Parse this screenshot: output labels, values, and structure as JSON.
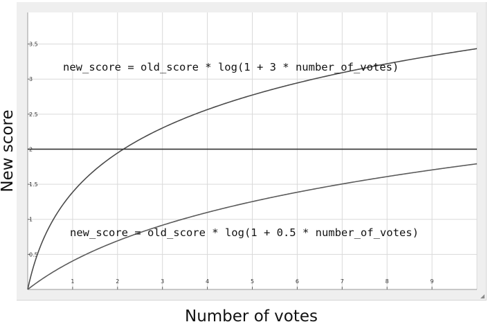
{
  "chart_data": {
    "type": "line",
    "title": "",
    "xlabel": "Number of votes",
    "ylabel": "New score",
    "xlim": [
      0,
      10
    ],
    "ylim": [
      0,
      3.95
    ],
    "x_ticks": [
      "1",
      "2",
      "3",
      "4",
      "5",
      "6",
      "7",
      "8",
      "9"
    ],
    "y_ticks": [
      "0.5",
      "1",
      "1.5",
      "2",
      "2.5",
      "3",
      "3.5"
    ],
    "grid": true,
    "series": [
      {
        "formula": "log(1 + 3 * x)",
        "x": [
          0,
          0.25,
          0.5,
          1,
          1.5,
          2,
          3,
          4,
          5,
          6,
          7,
          8,
          9,
          10
        ],
        "y": [
          0,
          0.56,
          0.92,
          1.39,
          1.7,
          1.95,
          2.3,
          2.56,
          2.77,
          2.94,
          3.09,
          3.22,
          3.33,
          3.43
        ],
        "color": "#4a4a4a"
      },
      {
        "formula": "2",
        "x": [
          0,
          10
        ],
        "y": [
          2,
          2
        ],
        "color": "#333333"
      },
      {
        "formula": "log(1 + 0.5 * x)",
        "x": [
          0,
          0.5,
          1,
          2,
          3,
          4,
          5,
          6,
          7,
          8,
          9,
          10
        ],
        "y": [
          0,
          0.22,
          0.41,
          0.69,
          0.92,
          1.1,
          1.25,
          1.39,
          1.5,
          1.61,
          1.7,
          1.79
        ],
        "color": "#5a5a5a"
      }
    ],
    "annotations": [
      "new_score = old_score * log(1 + 3 * number_of_votes)",
      "new_score = old_score * log(1 + 0.5 * number_of_votes)"
    ]
  }
}
